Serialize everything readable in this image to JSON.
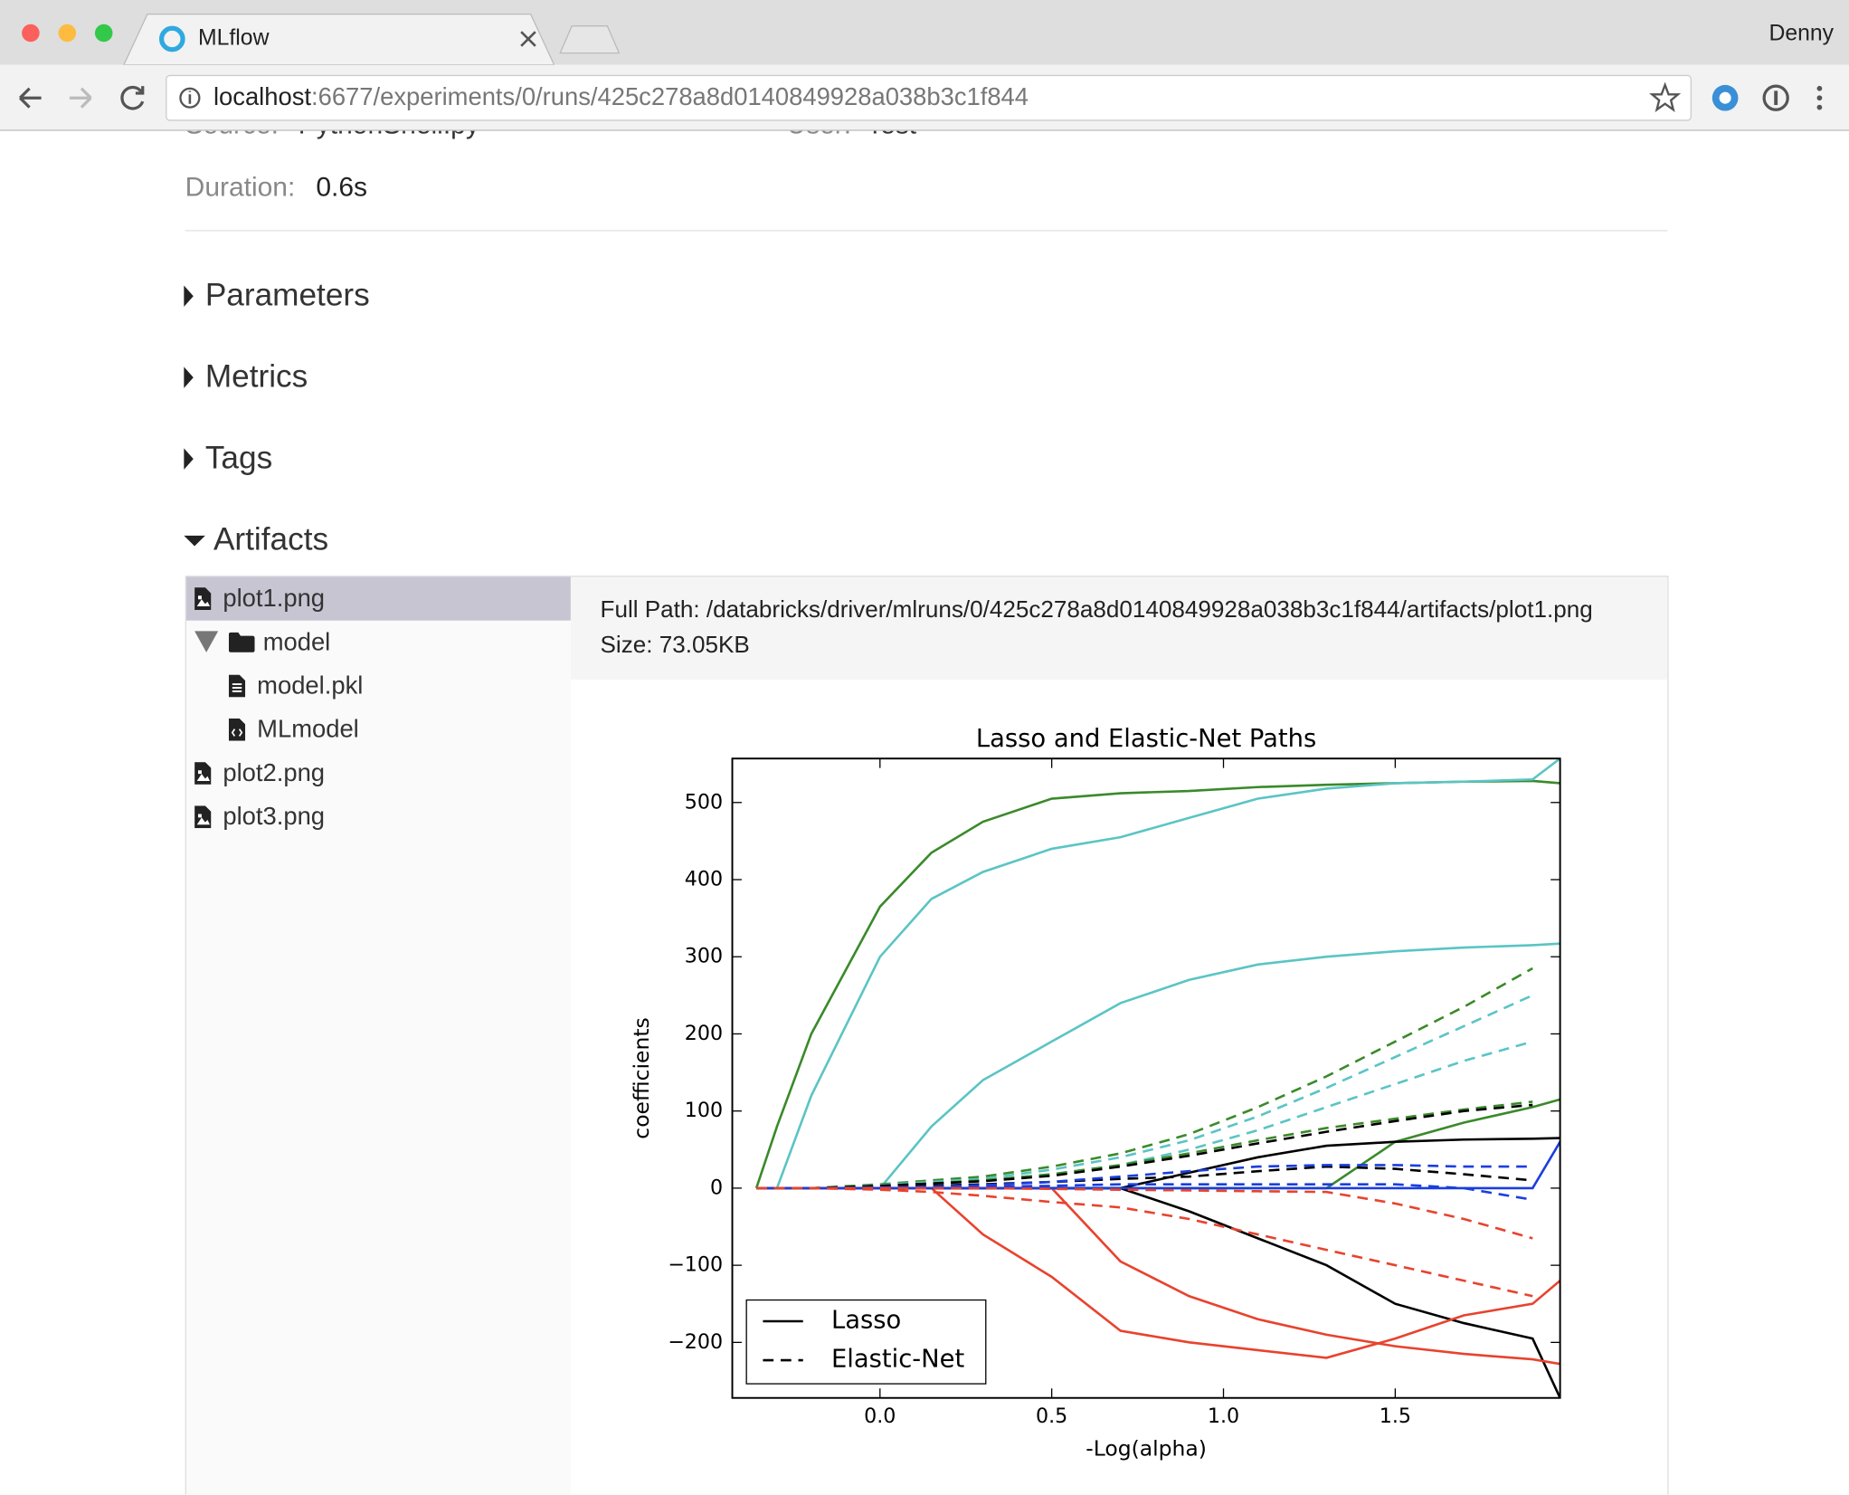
{
  "browser": {
    "tab_title": "MLflow",
    "user": "Denny",
    "url": {
      "host": "localhost",
      "path": ":6677/experiments/0/runs/425c278a8d0140849928a038b3c1f844"
    }
  },
  "run": {
    "source_label": "Source:",
    "source": "PythonShell.py",
    "user_label": "User:",
    "user": "Test",
    "duration_label": "Duration:",
    "duration": "0.6s"
  },
  "sections": [
    "Parameters",
    "Metrics",
    "Tags",
    "Artifacts"
  ],
  "artifacts": {
    "tree": [
      "plot1.png",
      "model",
      "model.pkl",
      "MLmodel",
      "plot2.png",
      "plot3.png"
    ],
    "full_path_label": "Full Path:",
    "full_path": "/databricks/driver/mlruns/0/425c278a8d0140849928a038b3c1f844/artifacts/plot1.png",
    "size_label": "Size:",
    "size": "73.05KB"
  },
  "chart": {
    "type": "line",
    "title": "Lasso and Elastic-Net Paths",
    "xlabel": "-Log(alpha)",
    "ylabel": "coefficients",
    "xlim": [
      -0.43,
      1.98
    ],
    "ylim": [
      -272,
      557
    ],
    "xticks": [
      {
        "value": 0,
        "label": "0.0"
      },
      {
        "value": 0.5,
        "label": "0.5"
      },
      {
        "value": 1,
        "label": "1.0"
      },
      {
        "value": 1.5,
        "label": "1.5"
      }
    ],
    "yticks": [
      {
        "value": -200,
        "label": "−200"
      },
      {
        "value": -100,
        "label": "−100"
      },
      0,
      100,
      200,
      300,
      400,
      500
    ],
    "legend": [
      {
        "label": "Lasso",
        "dash": "solid"
      },
      {
        "label": "Elastic-Net",
        "dash": "dashed"
      }
    ],
    "legend_position": "lower left",
    "x": [
      -0.36,
      -0.3,
      -0.2,
      0,
      0.15,
      0.3,
      0.5,
      0.7,
      0.9,
      1.1,
      1.3,
      1.5,
      1.7,
      1.9,
      1.98
    ],
    "series": [
      {
        "color": "#3a8a2a",
        "dash": "solid",
        "values": [
          0,
          80,
          200,
          365,
          435,
          475,
          505,
          512,
          515,
          520,
          523,
          525,
          527,
          528,
          525
        ]
      },
      {
        "color": "#5bc4c4",
        "dash": "solid",
        "values": [
          0,
          0,
          120,
          300,
          375,
          410,
          440,
          455,
          480,
          505,
          518,
          525,
          527,
          530,
          557
        ]
      },
      {
        "color": "#5bc4c4",
        "dash": "solid",
        "values": [
          0,
          0,
          0,
          0,
          80,
          140,
          190,
          240,
          270,
          290,
          300,
          307,
          312,
          315,
          317
        ]
      },
      {
        "color": "#3a8a2a",
        "dash": "solid",
        "values": [
          0,
          0,
          0,
          0,
          0,
          0,
          0,
          0,
          0,
          0,
          0,
          60,
          85,
          105,
          115
        ]
      },
      {
        "color": "#000000",
        "dash": "solid",
        "values": [
          0,
          0,
          0,
          0,
          0,
          0,
          0,
          0,
          20,
          40,
          55,
          60,
          63,
          64,
          65
        ]
      },
      {
        "color": "#000000",
        "dash": "solid",
        "values": [
          0,
          0,
          0,
          0,
          0,
          0,
          0,
          0,
          -30,
          -65,
          -100,
          -150,
          -175,
          -195,
          -272
        ]
      },
      {
        "color": "#e8432e",
        "dash": "solid",
        "values": [
          0,
          0,
          0,
          0,
          0,
          -60,
          -115,
          -185,
          -200,
          -210,
          -220,
          -195,
          -165,
          -150,
          -120
        ]
      },
      {
        "color": "#e8432e",
        "dash": "solid",
        "values": [
          0,
          0,
          0,
          0,
          0,
          0,
          0,
          -95,
          -140,
          -170,
          -190,
          -205,
          -215,
          -222,
          -228
        ]
      },
      {
        "color": "#1a3ee0",
        "dash": "solid",
        "values": [
          0,
          0,
          0,
          0,
          0,
          0,
          0,
          0,
          0,
          0,
          0,
          0,
          0,
          0,
          60
        ]
      },
      {
        "color": "#3a8a2a",
        "dash": "dashed",
        "values": [
          0,
          0,
          0,
          5,
          10,
          15,
          28,
          45,
          70,
          105,
          145,
          190,
          235,
          285,
          null
        ]
      },
      {
        "color": "#5bc4c4",
        "dash": "dashed",
        "values": [
          0,
          0,
          0,
          4,
          8,
          12,
          24,
          40,
          62,
          93,
          130,
          170,
          210,
          250,
          null
        ]
      },
      {
        "color": "#5bc4c4",
        "dash": "dashed",
        "values": [
          0,
          0,
          0,
          3,
          6,
          10,
          18,
          30,
          50,
          75,
          105,
          135,
          165,
          190,
          null
        ]
      },
      {
        "color": "#3a8a2a",
        "dash": "dashed",
        "values": [
          0,
          0,
          0,
          3,
          6,
          10,
          18,
          30,
          45,
          62,
          78,
          90,
          102,
          112,
          null
        ]
      },
      {
        "color": "#000000",
        "dash": "dashed",
        "values": [
          0,
          0,
          0,
          3,
          6,
          9,
          16,
          28,
          42,
          58,
          73,
          87,
          100,
          108,
          null
        ]
      },
      {
        "color": "#000000",
        "dash": "dashed",
        "values": [
          0,
          0,
          0,
          1,
          3,
          5,
          8,
          12,
          15,
          22,
          28,
          25,
          18,
          10,
          null
        ]
      },
      {
        "color": "#1a3ee0",
        "dash": "dashed",
        "values": [
          0,
          0,
          0,
          1,
          2,
          4,
          8,
          15,
          22,
          28,
          30,
          30,
          28,
          28,
          null
        ]
      },
      {
        "color": "#1a3ee0",
        "dash": "dashed",
        "values": [
          0,
          0,
          0,
          0,
          1,
          2,
          3,
          5,
          5,
          5,
          5,
          5,
          0,
          -15,
          null
        ]
      },
      {
        "color": "#e8432e",
        "dash": "dashed",
        "values": [
          0,
          0,
          0,
          -2,
          -5,
          -10,
          -18,
          -25,
          -40,
          -60,
          -80,
          -100,
          -120,
          -140,
          null
        ]
      },
      {
        "color": "#e8432e",
        "dash": "dashed",
        "values": [
          0,
          0,
          0,
          0,
          0,
          0,
          -1,
          -2,
          -3,
          -4,
          -5,
          -20,
          -40,
          -65,
          null
        ]
      }
    ]
  }
}
